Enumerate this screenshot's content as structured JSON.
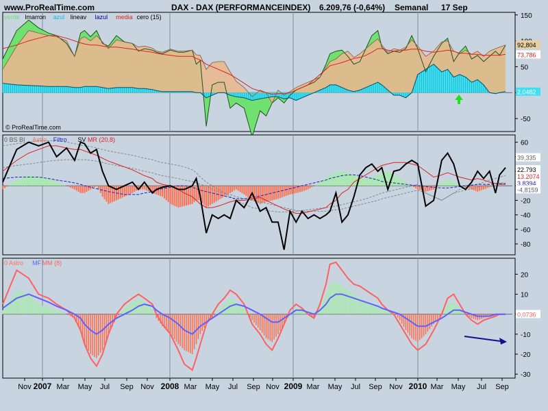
{
  "header": {
    "site": "www.ProRealTime.com",
    "instrument": "DAX - DAX (PERFORMANCEINDEX)",
    "price": "6.209,76 (-0,64%)",
    "period": "Semanal",
    "date": "17 Sep"
  },
  "watermark": "© ProRealTime.com",
  "colors": {
    "background": "#c8d4e0",
    "marron": "#e8b890",
    "verde": "#70e070",
    "azul": "#40e0f0",
    "media": "#e02020",
    "astro_pos": "#a0f0a0",
    "astro_neg": "#ff7050",
    "filtro": "#2020c0",
    "mf": "#6060ff",
    "mm": "#ff6060",
    "arrow_up": "#20e020",
    "arrow_down": "#101090"
  },
  "chart_data": [
    {
      "type": "area",
      "legend": {
        "verde": "verde",
        "marron": "lmarron",
        "azul": "azul",
        "lineav": "lineav",
        "lazul": "lazul",
        "media": "media",
        "cero": "cero (15)"
      },
      "ylim": [
        -75,
        155
      ],
      "yticks": [
        "150",
        "100",
        "50",
        "0",
        "-50"
      ],
      "value_labels": [
        "92,804",
        "73,786",
        "2,0482"
      ],
      "annotation": "up-arrow",
      "x_weeks": [
        0,
        7,
        13,
        18,
        23,
        27,
        32,
        36,
        39,
        41,
        44,
        47,
        50,
        53,
        57,
        61,
        65,
        68,
        71,
        75,
        77,
        80,
        84,
        88,
        91,
        95,
        97,
        99,
        102,
        105,
        108,
        111,
        114,
        117,
        121,
        125,
        129,
        132,
        135,
        138,
        141,
        144,
        147,
        150,
        153,
        156,
        159,
        162,
        164,
        167,
        170,
        173,
        176,
        179,
        182,
        185,
        188,
        190,
        193,
        196,
        199,
        202,
        205,
        208,
        212,
        216,
        220,
        223,
        226,
        229,
        232,
        235,
        238,
        241,
        244,
        247,
        249,
        252
      ],
      "marron": [
        45,
        90,
        120,
        115,
        110,
        108,
        100,
        70,
        104,
        108,
        100,
        110,
        98,
        85,
        102,
        98,
        95,
        88,
        90,
        86,
        80,
        78,
        84,
        80,
        80,
        82,
        73,
        72,
        45,
        58,
        60,
        60,
        40,
        22,
        10,
        -8,
        5,
        0,
        -20,
        5,
        -5,
        2,
        10,
        15,
        20,
        25,
        30,
        48,
        60,
        65,
        75,
        80,
        68,
        75,
        85,
        95,
        104,
        92,
        78,
        85,
        82,
        88,
        102,
        90,
        70,
        80,
        98,
        100,
        80,
        75,
        82,
        74,
        80,
        70,
        80,
        85,
        88,
        92
      ],
      "verde": [
        65,
        120,
        140,
        125,
        115,
        110,
        95,
        70,
        115,
        120,
        108,
        120,
        95,
        90,
        110,
        98,
        95,
        80,
        85,
        82,
        78,
        75,
        82,
        78,
        78,
        82,
        55,
        62,
        -65,
        15,
        20,
        20,
        -30,
        -20,
        -30,
        -85,
        -35,
        -45,
        -20,
        -10,
        -20,
        -5,
        5,
        10,
        15,
        20,
        30,
        55,
        75,
        80,
        82,
        70,
        55,
        60,
        85,
        110,
        120,
        88,
        75,
        80,
        78,
        85,
        110,
        85,
        40,
        70,
        95,
        105,
        60,
        78,
        90,
        65,
        72,
        60,
        70,
        80,
        72,
        92
      ],
      "azul": [
        18,
        15,
        14,
        13,
        12,
        12,
        12,
        10,
        10,
        12,
        12,
        12,
        10,
        8,
        10,
        10,
        10,
        8,
        8,
        6,
        4,
        2,
        2,
        2,
        2,
        2,
        0,
        0,
        -10,
        -5,
        0,
        0,
        -5,
        -8,
        -10,
        -15,
        -12,
        -10,
        -8,
        -8,
        -12,
        -10,
        -15,
        -10,
        -5,
        0,
        5,
        10,
        15,
        15,
        10,
        5,
        2,
        5,
        10,
        15,
        20,
        15,
        5,
        -5,
        -5,
        -10,
        0,
        35,
        45,
        55,
        40,
        45,
        30,
        35,
        30,
        20,
        25,
        15,
        0,
        -2,
        0,
        2
      ],
      "media": [
        85,
        92,
        100,
        105,
        110,
        110,
        105,
        100,
        96,
        94,
        92,
        92,
        90,
        88,
        88,
        86,
        84,
        82,
        80,
        78,
        76,
        74,
        72,
        70,
        70,
        70,
        66,
        63,
        55,
        50,
        45,
        40,
        35,
        28,
        18,
        8,
        3,
        0,
        -3,
        -2,
        -2,
        0,
        5,
        10,
        15,
        25,
        35,
        45,
        52,
        55,
        58,
        62,
        66,
        68,
        72,
        78,
        85,
        85,
        82,
        80,
        82,
        82,
        84,
        84,
        80,
        78,
        80,
        82,
        80,
        76,
        76,
        74,
        74,
        72,
        72,
        72,
        72,
        74
      ]
    },
    {
      "type": "line",
      "legend": {
        "bs": "0 BS BI",
        "astro": "Astro",
        "filtro": "Filtro",
        "sv": "SV",
        "mr": "MR (20,8)"
      },
      "ylim": [
        -95,
        70
      ],
      "yticks": [
        "60",
        "40",
        "20",
        "0",
        "-20",
        "-40",
        "-60",
        "-80"
      ],
      "value_labels": [
        "39,335",
        "22,793",
        "13,2074",
        "3,8394",
        "-4,8159"
      ],
      "x_weeks": [
        0,
        7,
        13,
        18,
        23,
        27,
        32,
        36,
        39,
        41,
        44,
        47,
        50,
        53,
        57,
        61,
        65,
        68,
        71,
        75,
        77,
        80,
        84,
        88,
        91,
        95,
        97,
        99,
        102,
        105,
        108,
        111,
        114,
        117,
        121,
        125,
        129,
        132,
        135,
        138,
        141,
        144,
        147,
        150,
        153,
        156,
        159,
        162,
        164,
        167,
        170,
        173,
        176,
        179,
        182,
        185,
        188,
        190,
        193,
        196,
        199,
        202,
        205,
        208,
        212,
        216,
        220,
        223,
        226,
        229,
        232,
        235,
        238,
        241,
        244,
        247,
        249,
        252
      ],
      "sv": [
        5,
        50,
        60,
        55,
        60,
        40,
        52,
        35,
        60,
        58,
        45,
        50,
        20,
        0,
        -5,
        0,
        5,
        -5,
        5,
        -10,
        -5,
        -2,
        0,
        -5,
        -5,
        0,
        10,
        -15,
        -65,
        -40,
        -45,
        -40,
        -45,
        -20,
        -30,
        -10,
        -35,
        -30,
        -50,
        -50,
        -88,
        -35,
        -50,
        -35,
        -45,
        -40,
        -45,
        -40,
        -35,
        -10,
        -50,
        -40,
        -15,
        15,
        25,
        30,
        20,
        25,
        -5,
        20,
        22,
        30,
        35,
        30,
        -28,
        -20,
        35,
        45,
        30,
        0,
        -5,
        5,
        20,
        10,
        20,
        -10,
        15,
        25
      ],
      "bs": [
        55,
        58,
        60,
        62,
        62,
        62,
        60,
        58,
        56,
        55,
        54,
        52,
        50,
        48,
        46,
        44,
        42,
        40,
        38,
        36,
        34,
        32,
        30,
        28,
        26,
        22,
        18,
        12,
        5,
        0,
        -5,
        -10,
        -15,
        -20,
        -25,
        -30,
        -32,
        -34,
        -35,
        -36,
        -36,
        -36,
        -35,
        -34,
        -33,
        -32,
        -31,
        -30,
        -29,
        -28,
        -26,
        -24,
        -22,
        -20,
        -18,
        -15,
        -12,
        -10,
        -8,
        -6,
        -4,
        -2,
        0,
        2,
        -10,
        -15,
        -20,
        -15,
        -10,
        -5,
        -2,
        0,
        2,
        5,
        8,
        10,
        12,
        14
      ],
      "bi": [
        25,
        28,
        30,
        32,
        34,
        35,
        36,
        36,
        36,
        36,
        35,
        34,
        32,
        30,
        28,
        26,
        24,
        22,
        20,
        18,
        16,
        14,
        12,
        10,
        8,
        6,
        4,
        2,
        0,
        -5,
        -8,
        -10,
        -12,
        -15,
        -18,
        -20,
        -22,
        -24,
        -26,
        -28,
        -30,
        -32,
        -34,
        -35,
        -35,
        -35,
        -35,
        -35,
        -34,
        -33,
        -32,
        -30,
        -28,
        -26,
        -24,
        -22,
        -20,
        -18,
        -16,
        -14,
        -12,
        -10,
        -8,
        -6,
        -10,
        -15,
        -20,
        -15,
        -10,
        -8,
        -6,
        -4,
        -2,
        0,
        2,
        3,
        4,
        4
      ],
      "mr": [
        20,
        35,
        45,
        50,
        55,
        55,
        52,
        50,
        50,
        48,
        45,
        42,
        38,
        34,
        30,
        26,
        22,
        18,
        14,
        10,
        5,
        2,
        0,
        -5,
        -10,
        -15,
        -20,
        -25,
        -30,
        -30,
        -28,
        -25,
        -22,
        -20,
        -20,
        -18,
        -16,
        -20,
        -24,
        -28,
        -32,
        -35,
        -38,
        -38,
        -36,
        -34,
        -32,
        -30,
        -25,
        -20,
        -10,
        -5,
        5,
        10,
        15,
        20,
        25,
        28,
        30,
        32,
        32,
        32,
        30,
        28,
        20,
        12,
        15,
        18,
        15,
        12,
        10,
        8,
        10,
        8,
        5,
        3,
        2,
        2
      ],
      "filtro": [
        10,
        12,
        12,
        12,
        10,
        8,
        6,
        4,
        2,
        0,
        -2,
        -4,
        -6,
        -8,
        -10,
        -12,
        -12,
        -12,
        -10,
        -8,
        -6,
        -4,
        -2,
        0,
        0,
        -2,
        -4,
        -6,
        -8,
        -10,
        -12,
        -14,
        -16,
        -18,
        -18,
        -16,
        -14,
        -12,
        -10,
        -8,
        -6,
        -4,
        -2,
        0,
        2,
        4,
        6,
        8,
        10,
        12,
        14,
        15,
        15,
        14,
        12,
        10,
        8,
        6,
        5,
        4,
        3,
        2,
        1,
        0,
        -1,
        -2,
        -3,
        -3,
        -2,
        -1,
        0,
        1,
        2,
        2,
        2,
        3,
        3,
        3
      ],
      "astro": [
        -5,
        8,
        15,
        12,
        10,
        5,
        0,
        -5,
        -10,
        -10,
        -5,
        0,
        -15,
        -25,
        -20,
        -15,
        -10,
        -5,
        -5,
        -10,
        -12,
        -15,
        -25,
        -30,
        -28,
        -25,
        -20,
        -20,
        -30,
        -25,
        -20,
        -15,
        -10,
        -5,
        -12,
        -20,
        -25,
        -22,
        -20,
        -18,
        -15,
        -12,
        -10,
        -8,
        -5,
        0,
        5,
        10,
        15,
        18,
        20,
        18,
        15,
        12,
        10,
        12,
        15,
        18,
        20,
        15,
        10,
        5,
        0,
        -5,
        -8,
        -5,
        5,
        8,
        5,
        2,
        -2,
        -5,
        -8,
        -5,
        -2,
        0,
        0,
        0
      ]
    },
    {
      "type": "line",
      "legend": {
        "astro": "0 Astro",
        "mf": "MF",
        "mm": "MM (8)"
      },
      "ylim": [
        -32,
        28
      ],
      "yticks": [
        "20",
        "10",
        "0",
        "-10",
        "-20",
        "-30"
      ],
      "value_labels": [
        "0,0736"
      ],
      "annotation": "down-arrow",
      "x_weeks": [
        0,
        7,
        13,
        18,
        23,
        27,
        32,
        36,
        39,
        41,
        44,
        47,
        50,
        53,
        57,
        61,
        65,
        68,
        71,
        75,
        77,
        80,
        84,
        88,
        91,
        95,
        97,
        99,
        102,
        105,
        108,
        111,
        114,
        117,
        121,
        125,
        129,
        132,
        135,
        138,
        141,
        144,
        147,
        150,
        153,
        156,
        159,
        162,
        164,
        167,
        170,
        173,
        176,
        179,
        182,
        185,
        188,
        190,
        193,
        196,
        199,
        202,
        205,
        208,
        212,
        216,
        220,
        223,
        226,
        229,
        232,
        235,
        238,
        241,
        244,
        247,
        249,
        252
      ],
      "mm": [
        5,
        22,
        18,
        10,
        8,
        5,
        2,
        -2,
        -8,
        -15,
        -22,
        -26,
        -20,
        -10,
        0,
        5,
        8,
        10,
        8,
        5,
        0,
        -5,
        -10,
        -18,
        -25,
        -28,
        -22,
        -15,
        -5,
        0,
        5,
        8,
        12,
        10,
        5,
        -5,
        -10,
        -15,
        -18,
        -12,
        -5,
        2,
        5,
        3,
        0,
        -2,
        5,
        15,
        25,
        26,
        22,
        18,
        15,
        14,
        12,
        10,
        8,
        5,
        2,
        0,
        -5,
        -10,
        -15,
        -18,
        -15,
        -8,
        0,
        8,
        10,
        5,
        0,
        -3,
        -5,
        -3,
        -2,
        -1,
        0,
        0
      ],
      "mf": [
        3,
        8,
        10,
        8,
        6,
        4,
        2,
        0,
        -2,
        -5,
        -8,
        -10,
        -8,
        -5,
        -2,
        0,
        2,
        4,
        5,
        4,
        2,
        0,
        -2,
        -5,
        -8,
        -10,
        -8,
        -6,
        -4,
        -2,
        0,
        2,
        4,
        5,
        4,
        2,
        0,
        -2,
        -4,
        -4,
        -2,
        0,
        2,
        2,
        1,
        0,
        2,
        5,
        8,
        10,
        10,
        9,
        8,
        7,
        6,
        5,
        4,
        3,
        2,
        1,
        0,
        -2,
        -4,
        -6,
        -6,
        -4,
        -2,
        0,
        2,
        2,
        1,
        0,
        -1,
        -1,
        -1,
        0,
        0,
        0
      ],
      "astro": [
        2,
        12,
        10,
        5,
        3,
        2,
        0,
        -2,
        -8,
        -15,
        -20,
        -22,
        -18,
        -10,
        -2,
        3,
        6,
        8,
        6,
        3,
        -2,
        -6,
        -10,
        -15,
        -18,
        -20,
        -15,
        -10,
        -5,
        -2,
        2,
        5,
        8,
        6,
        3,
        -3,
        -8,
        -12,
        -14,
        -10,
        -5,
        0,
        3,
        2,
        0,
        -2,
        3,
        10,
        15,
        16,
        14,
        12,
        10,
        8,
        6,
        5,
        4,
        3,
        2,
        1,
        -3,
        -8,
        -12,
        -14,
        -10,
        -5,
        0,
        5,
        6,
        3,
        0,
        -2,
        -3,
        -2,
        -1,
        -1,
        0,
        0
      ]
    }
  ],
  "x_axis": {
    "labels": [
      "Nov",
      "2007",
      "Mar",
      "May",
      "Jul",
      "Sep",
      "Nov",
      "2008",
      "Mar",
      "May",
      "Jul",
      "Sep",
      "Nov",
      "2009",
      "Mar",
      "May",
      "Jul",
      "Sep",
      "Nov",
      "2010",
      "Mar",
      "May",
      "Jul",
      "Sep"
    ],
    "year_labels": [
      "2007",
      "2008",
      "2009",
      "2010"
    ]
  }
}
